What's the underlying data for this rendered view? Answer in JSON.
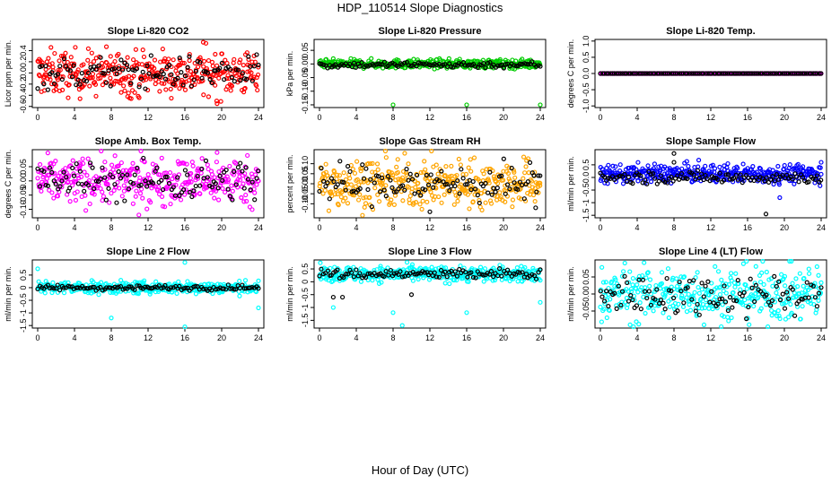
{
  "figure": {
    "title": "HDP_110514  Slope Diagnostics",
    "xlabel": "Hour of Day (UTC)"
  },
  "chart_data": [
    {
      "type": "scatter",
      "title": "Slope Li-820 CO2",
      "ylabel": "Licor ppm per min.",
      "xlim": [
        0,
        24
      ],
      "ylim": [
        -0.62,
        0.6
      ],
      "xticks": [
        0,
        4,
        8,
        12,
        16,
        20,
        24
      ],
      "yticks": [
        -0.6,
        -0.4,
        -0.2,
        0.0,
        0.2,
        0.4
      ],
      "ytick_labels": [
        "-0.6",
        "-0.4",
        "-0.2",
        "0.0",
        "0.2",
        "0.4"
      ],
      "series": [
        {
          "color": "#ff0000",
          "center": 0.0,
          "spread": 0.2,
          "outliers": [
            [
              18,
              0.55
            ],
            [
              19.5,
              -0.55
            ],
            [
              10,
              -0.45
            ]
          ]
        },
        {
          "color": "#000000",
          "center": 0.0,
          "spread": 0.14,
          "outliers": []
        }
      ]
    },
    {
      "type": "scatter",
      "title": "Slope Li-820 Pressure",
      "ylabel": "kPa per min.",
      "xlim": [
        0,
        24
      ],
      "ylim": [
        -0.16,
        0.09
      ],
      "xticks": [
        0,
        4,
        8,
        12,
        16,
        20,
        24
      ],
      "yticks": [
        -0.15,
        -0.1,
        -0.05,
        0.0,
        0.05
      ],
      "ytick_labels": [
        "-0.15",
        "-0.10",
        "-0.05",
        "0.00",
        "0.05"
      ],
      "series": [
        {
          "color": "#00cc00",
          "center": 0.0,
          "spread": 0.008,
          "outliers": [
            [
              8,
              -0.15
            ],
            [
              16,
              -0.15
            ],
            [
              24,
              -0.15
            ]
          ]
        },
        {
          "color": "#000000",
          "center": -0.003,
          "spread": 0.006,
          "outliers": []
        }
      ]
    },
    {
      "type": "scatter",
      "title": "Slope Li-820 Temp.",
      "ylabel": "degrees C per min.",
      "xlim": [
        0,
        24
      ],
      "ylim": [
        -1.05,
        1.05
      ],
      "xticks": [
        0,
        4,
        8,
        12,
        16,
        20,
        24
      ],
      "yticks": [
        -1.0,
        -0.5,
        0.0,
        0.5,
        1.0
      ],
      "ytick_labels": [
        "-1.0",
        "-0.5",
        "0.0",
        "0.5",
        "1.0"
      ],
      "series": [
        {
          "color": "#ff00ff",
          "center": 0.0,
          "spread": 0.0,
          "outliers": []
        },
        {
          "color": "#000000",
          "center": 0.0,
          "spread": 0.0,
          "outliers": []
        }
      ]
    },
    {
      "type": "scatter",
      "title": "Slope Amb. Box Temp.",
      "ylabel": "degrees C per min.",
      "xlim": [
        0,
        24
      ],
      "ylim": [
        -0.13,
        0.11
      ],
      "xticks": [
        0,
        4,
        8,
        12,
        16,
        20,
        24
      ],
      "yticks": [
        -0.1,
        -0.05,
        0.0,
        0.05
      ],
      "ytick_labels": [
        "-0.10",
        "-0.05",
        "0.00",
        "0.05"
      ],
      "series": [
        {
          "color": "#ff00ff",
          "center": 0.0,
          "spread": 0.04,
          "outliers": [
            [
              19.5,
              0.1
            ],
            [
              11,
              -0.12
            ]
          ]
        },
        {
          "color": "#000000",
          "center": 0.0,
          "spread": 0.035,
          "outliers": []
        }
      ]
    },
    {
      "type": "scatter",
      "title": "Slope Gas Stream RH",
      "ylabel": "percent per min.",
      "xlim": [
        0,
        24
      ],
      "ylim": [
        -0.17,
        0.17
      ],
      "xticks": [
        0,
        4,
        8,
        12,
        16,
        20,
        24
      ],
      "yticks": [
        -0.1,
        -0.05,
        0.0,
        0.05,
        0.1
      ],
      "ytick_labels": [
        "-0.10",
        "-0.05",
        "0.00",
        "0.05",
        "0.10"
      ],
      "series": [
        {
          "color": "#ffa500",
          "center": 0.0,
          "spread": 0.06,
          "outliers": []
        },
        {
          "color": "#000000",
          "center": 0.0,
          "spread": 0.05,
          "outliers": [
            [
              23.5,
              -0.12
            ],
            [
              12,
              -0.14
            ]
          ]
        }
      ]
    },
    {
      "type": "scatter",
      "title": "Slope Sample Flow",
      "ylabel": "ml/min per min.",
      "xlim": [
        0,
        24
      ],
      "ylim": [
        -1.6,
        1.1
      ],
      "xticks": [
        0,
        4,
        8,
        12,
        16,
        20,
        24
      ],
      "yticks": [
        -1.5,
        -1.0,
        -0.5,
        0.0,
        0.5
      ],
      "ytick_labels": [
        "-1.5",
        "-1",
        "-0.5",
        "0.0",
        "0.5"
      ],
      "series": [
        {
          "color": "#0000ff",
          "center": 0.15,
          "spread": 0.18,
          "outliers": [
            [
              19.5,
              -0.8
            ],
            [
              24,
              0.6
            ]
          ]
        },
        {
          "color": "#000000",
          "center": 0.0,
          "spread": 0.12,
          "outliers": [
            [
              8,
              0.95
            ],
            [
              18,
              -1.45
            ],
            [
              8,
              0.6
            ]
          ]
        }
      ]
    },
    {
      "type": "scatter",
      "title": "Slope Line 2 Flow",
      "ylabel": "ml/min per min.",
      "xlim": [
        0,
        24
      ],
      "ylim": [
        -1.6,
        1.1
      ],
      "xticks": [
        0,
        4,
        8,
        12,
        16,
        20,
        24
      ],
      "yticks": [
        -1.5,
        -1.0,
        -0.5,
        0.0,
        0.5
      ],
      "ytick_labels": [
        "-1.5",
        "-1",
        "-0.5",
        "0",
        "0.5"
      ],
      "series": [
        {
          "color": "#00ffff",
          "center": 0.0,
          "spread": 0.12,
          "outliers": [
            [
              16,
              1.0
            ],
            [
              8,
              -1.2
            ],
            [
              16,
              -1.55
            ],
            [
              24,
              -0.8
            ],
            [
              0,
              0.75
            ]
          ]
        },
        {
          "color": "#000000",
          "center": 0.0,
          "spread": 0.05,
          "outliers": []
        }
      ]
    },
    {
      "type": "scatter",
      "title": "Slope Line 3 Flow",
      "ylabel": "ml/min per min.",
      "xlim": [
        0,
        24
      ],
      "ylim": [
        -1.8,
        0.85
      ],
      "xticks": [
        0,
        4,
        8,
        12,
        16,
        20,
        24
      ],
      "yticks": [
        -1.5,
        -1.0,
        -0.5,
        0.0,
        0.5
      ],
      "ytick_labels": [
        "-1.5",
        "-1",
        "-0.5",
        "0",
        "0.5"
      ],
      "series": [
        {
          "color": "#00ffff",
          "center": 0.3,
          "spread": 0.15,
          "outliers": [
            [
              8,
              -1.2
            ],
            [
              9,
              -1.7
            ],
            [
              16,
              -1.2
            ],
            [
              1.5,
              -1.0
            ],
            [
              24,
              -0.8
            ]
          ]
        },
        {
          "color": "#000000",
          "center": 0.3,
          "spread": 0.1,
          "outliers": [
            [
              1.5,
              -0.6
            ],
            [
              2.5,
              -0.6
            ],
            [
              10,
              -0.5
            ]
          ]
        }
      ]
    },
    {
      "type": "scatter",
      "title": "Slope Line 4 (LT) Flow",
      "ylabel": "ml/min per min.",
      "xlim": [
        0,
        24
      ],
      "ylim": [
        -0.1,
        0.1
      ],
      "xticks": [
        0,
        4,
        8,
        12,
        16,
        20,
        24
      ],
      "yticks": [
        -0.05,
        0.0,
        0.05
      ],
      "ytick_labels": [
        "-0.05",
        "0.00",
        "0.05"
      ],
      "series": [
        {
          "color": "#00ffff",
          "center": 0.0,
          "spread": 0.04,
          "outliers": []
        },
        {
          "color": "#000000",
          "center": 0.0,
          "spread": 0.03,
          "outliers": []
        }
      ]
    }
  ]
}
